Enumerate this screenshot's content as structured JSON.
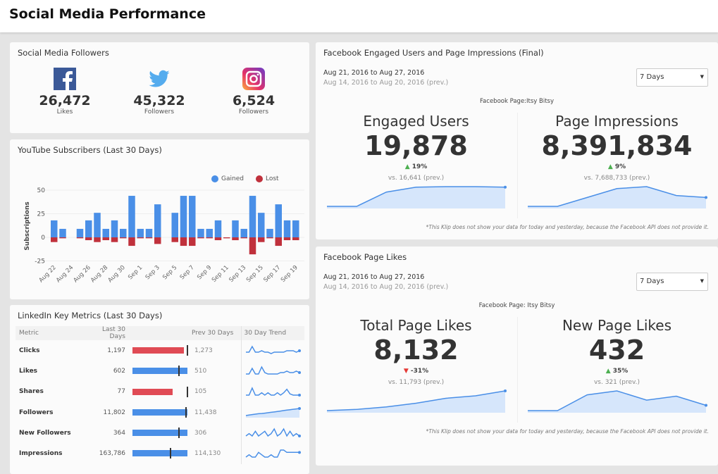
{
  "header": {
    "title": "Social Media Performance"
  },
  "followers": {
    "title": "Social Media Followers",
    "items": [
      {
        "icon": "facebook-icon",
        "value": "26,472",
        "label": "Likes"
      },
      {
        "icon": "twitter-icon",
        "value": "45,322",
        "label": "Followers"
      },
      {
        "icon": "instagram-icon",
        "value": "6,524",
        "label": "Followers"
      }
    ]
  },
  "youtube": {
    "title": "YouTube Subscribers (Last 30 Days)",
    "chart_data": {
      "type": "bar",
      "ylabel": "Subscriptions",
      "ylim": [
        -25,
        50
      ],
      "yticks": [
        "50",
        "25",
        "0",
        "-25"
      ],
      "yticks_values": [
        50,
        25,
        0,
        -25
      ],
      "categories": [
        "Aug 22",
        "Aug 23",
        "Aug 24",
        "Aug 25",
        "Aug 26",
        "Aug 27",
        "Aug 28",
        "Aug 29",
        "Aug 30",
        "Aug 31",
        "Sep 1",
        "Sep 2",
        "Sep 3",
        "Sep 4",
        "Sep 5",
        "Sep 6",
        "Sep 7",
        "Sep 8",
        "Sep 9",
        "Sep 10",
        "Sep 11",
        "Sep 12",
        "Sep 13",
        "Sep 14",
        "Sep 15",
        "Sep 16",
        "Sep 17",
        "Sep 18",
        "Sep 19"
      ],
      "xtick_labels": [
        "Aug 22",
        "Aug 24",
        "Aug 26",
        "Aug 28",
        "Aug 30",
        "Sep 1",
        "Sep 3",
        "Sep 5",
        "Sep 7",
        "Sep 9",
        "Sep 11",
        "Sep 13",
        "Sep 15",
        "Sep 17",
        "Sep 19"
      ],
      "series": [
        {
          "name": "Gained",
          "color": "#4a8fe7",
          "values": [
            18,
            9,
            0,
            9,
            18,
            26,
            9,
            18,
            9,
            44,
            9,
            9,
            35,
            0,
            26,
            44,
            44,
            9,
            9,
            18,
            0,
            18,
            9,
            44,
            26,
            9,
            35,
            18,
            18
          ]
        },
        {
          "name": "Lost",
          "color": "#c0313c",
          "values": [
            -5,
            -1,
            0,
            -1,
            -3,
            -5,
            -3,
            -5,
            -1,
            -9,
            -1,
            -1,
            -7,
            0,
            -5,
            -9,
            -9,
            -1,
            -1,
            -3,
            -1,
            -3,
            -1,
            -18,
            -5,
            -1,
            -9,
            -3,
            -3
          ]
        }
      ],
      "legend": "top-right"
    }
  },
  "linkedin": {
    "title": "LinkedIn Key Metrics (Last 30 Days)",
    "headers": [
      "Metric",
      "Last 30 Days",
      "",
      "Prev 30 Days",
      "30 Day Trend"
    ],
    "rows": [
      {
        "metric": "Clicks",
        "current": "1,197",
        "cur": 1197,
        "previous": "1,273",
        "prev": 1273,
        "trend": [
          2,
          2,
          6,
          2,
          2,
          3,
          2,
          2,
          1,
          2,
          2,
          2,
          2,
          3,
          3,
          3,
          2,
          3
        ]
      },
      {
        "metric": "Likes",
        "current": "602",
        "cur": 602,
        "previous": "510",
        "prev": 510,
        "trend": [
          1,
          1,
          5,
          1,
          1,
          6,
          2,
          1,
          1,
          1,
          1,
          2,
          2,
          3,
          2,
          2,
          3,
          2
        ]
      },
      {
        "metric": "Shares",
        "current": "77",
        "cur": 77,
        "previous": "105",
        "prev": 105,
        "trend": [
          1,
          1,
          7,
          1,
          1,
          3,
          1,
          3,
          1,
          1,
          3,
          1,
          3,
          6,
          2,
          1,
          1,
          1
        ]
      },
      {
        "metric": "Followers",
        "current": "11,802",
        "cur": 11802,
        "previous": "11,438",
        "prev": 11438,
        "trend": [
          0,
          0.5,
          1,
          1.4,
          1.8,
          2,
          2.4,
          2.8,
          3.2,
          3.6,
          4,
          4.5,
          5,
          5.4,
          5.8,
          6.2,
          6.6,
          7
        ]
      },
      {
        "metric": "New Followers",
        "current": "364",
        "cur": 364,
        "previous": "306",
        "prev": 306,
        "trend": [
          2,
          3,
          2,
          4,
          2,
          3,
          4,
          2,
          3,
          5,
          2,
          3,
          5,
          2,
          4,
          2,
          3,
          2
        ]
      },
      {
        "metric": "Impressions",
        "current": "163,786",
        "cur": 163786,
        "previous": "114,130",
        "prev": 114130,
        "trend": [
          2,
          3,
          2,
          2,
          4,
          3,
          2,
          2,
          3,
          2,
          2,
          5,
          5,
          4,
          4,
          4,
          4,
          4
        ]
      }
    ]
  },
  "fb_engaged": {
    "title": "Facebook Engaged Users and Page Impressions (Final)",
    "date_range": "Aug 21, 2016 to Aug 27, 2016",
    "prev_range": "Aug 14, 2016 to Aug 20, 2016 (prev.)",
    "select": "7 Days",
    "page": "Facebook Page:Itsy Bitsy",
    "kpis": [
      {
        "title": "Engaged Users",
        "value": "19,878",
        "change": "19%",
        "dir": "up",
        "vs": "vs. 16,641 (prev.)",
        "trend": [
          16.6,
          16.6,
          19.5,
          20.5,
          20.6,
          20.6,
          20.5
        ]
      },
      {
        "title": "Page Impressions",
        "value": "8,391,834",
        "change": "9%",
        "dir": "up",
        "vs": "vs. 7,688,733 (prev.)",
        "trend": [
          7.0,
          7.0,
          7.9,
          8.8,
          9.0,
          8.1,
          7.9
        ]
      }
    ],
    "note": "*This Klip does not show your data for today and yesterday, because the Facebook API does not provide it."
  },
  "fb_likes": {
    "title": "Facebook Page Likes",
    "date_range": "Aug 21, 2016 to Aug 27, 2016",
    "prev_range": "Aug 14, 2016 to Aug 20, 2016 (prev.)",
    "select": "7 Days",
    "page": "Facebook Page: Itsy Bitsy",
    "kpis": [
      {
        "title": "Total Page Likes",
        "value": "8,132",
        "change": "-31%",
        "dir": "down",
        "vs": "vs. 11,793 (prev.)",
        "trend": [
          0,
          0.5,
          1.5,
          3,
          5,
          6,
          8
        ]
      },
      {
        "title": "New Page Likes",
        "value": "432",
        "change": "35%",
        "dir": "up",
        "vs": "vs. 321 (prev.)",
        "trend": [
          0,
          0,
          60,
          75,
          40,
          55,
          20
        ]
      }
    ],
    "note": "*This Klip does not show your data for today and yesterday, because the Facebook API does not provide it."
  },
  "colors": {
    "blue": "#4a8fe7",
    "red": "#e04b55",
    "fill": "#d6e6fb",
    "up": "#4caf50",
    "down": "#e53935"
  }
}
